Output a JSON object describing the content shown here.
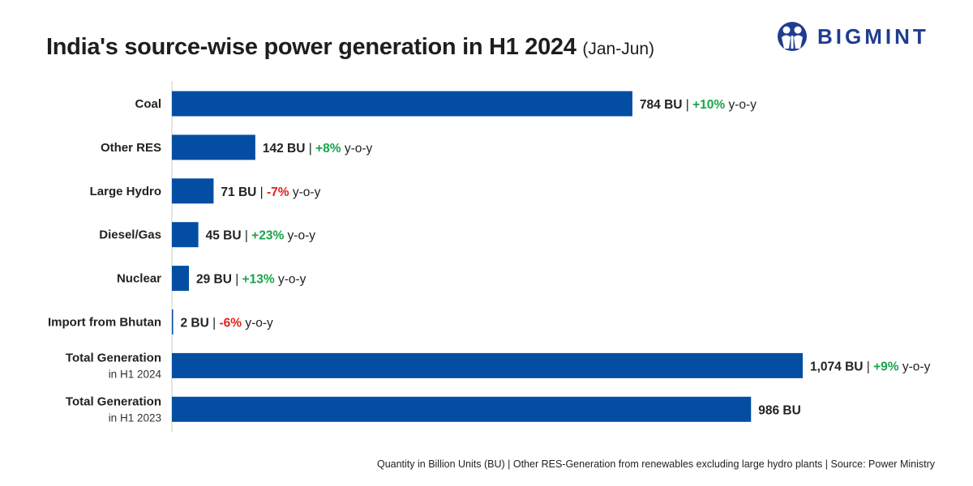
{
  "title": "India's source-wise power generation in H1 2024",
  "subtitle": "(Jan-Jun)",
  "logo": {
    "text": "BIGMINT",
    "color": "#1f3d8f"
  },
  "footer": "Quantity in Billion Units (BU) | Other RES-Generation from renewables excluding large hydro plants | Source: Power Ministry",
  "colors": {
    "bar": "#034ea2",
    "positive": "#1aa34a",
    "negative": "#e0201b",
    "axis": "#cccccc"
  },
  "chart_data": {
    "type": "bar",
    "orientation": "horizontal",
    "unit": "BU",
    "categories": [
      {
        "label": "Coal",
        "sublabel": ""
      },
      {
        "label": "Other RES",
        "sublabel": ""
      },
      {
        "label": "Large Hydro",
        "sublabel": ""
      },
      {
        "label": "Diesel/Gas",
        "sublabel": ""
      },
      {
        "label": "Nuclear",
        "sublabel": ""
      },
      {
        "label": "Import from Bhutan",
        "sublabel": ""
      },
      {
        "label": "Total  Generation",
        "sublabel": "in H1 2024"
      },
      {
        "label": "Total  Generation",
        "sublabel": "in H1 2023"
      }
    ],
    "values": [
      784,
      142,
      71,
      45,
      29,
      2,
      1074,
      986
    ],
    "value_labels": [
      "784 BU",
      "142 BU",
      "71 BU",
      "45 BU",
      "29 BU",
      "2 BU",
      "1,074 BU",
      "986 BU"
    ],
    "yoy": [
      "+10%",
      "+8%",
      "-7%",
      "+23%",
      "+13%",
      "-6%",
      "+9%",
      ""
    ],
    "yoy_suffix": "y-o-y",
    "grid": false
  }
}
